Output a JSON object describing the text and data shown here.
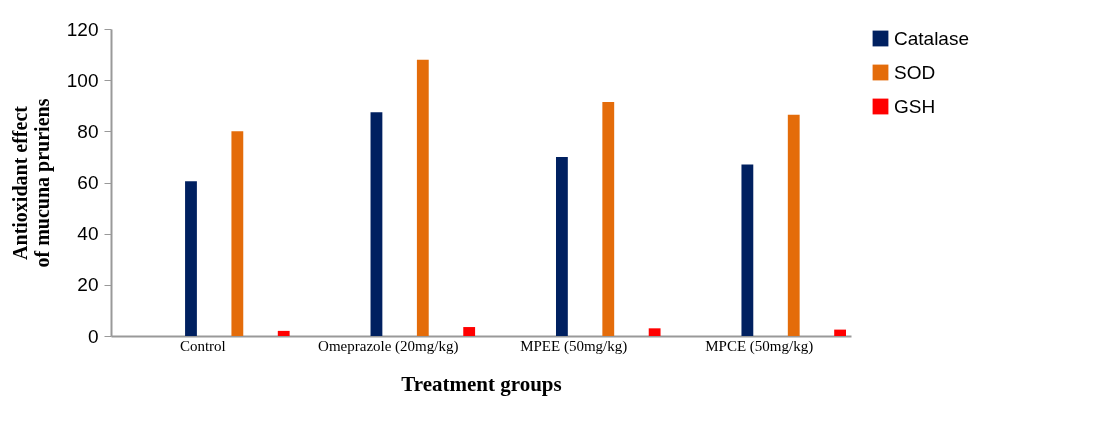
{
  "chart_data": {
    "type": "bar",
    "xlabel": "Treatment groups",
    "ylabel": "Antioxidant effect of mucuna pruriens",
    "categories": [
      "Control",
      "Omeprazole (20mg/kg)",
      "MPEE (50mg/kg)",
      "MPCE (50mg/kg)"
    ],
    "series": [
      {
        "name": "Catalase",
        "color": "#002060",
        "values": [
          60.5,
          87.5,
          70,
          67
        ]
      },
      {
        "name": "SOD",
        "color": "#e46c0a",
        "values": [
          80,
          108,
          91.5,
          86.5
        ]
      },
      {
        "name": "GSH",
        "color": "#ff0000",
        "values": [
          2,
          3.5,
          3,
          2.5
        ]
      }
    ],
    "ylim": [
      0,
      120
    ],
    "yticks": [
      0,
      20,
      40,
      60,
      80,
      100,
      120
    ],
    "legend": "right"
  }
}
